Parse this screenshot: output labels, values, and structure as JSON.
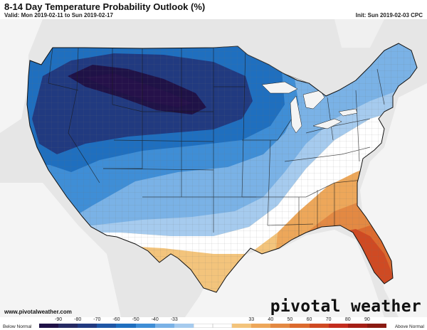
{
  "header": {
    "title": "8-14 Day Temperature Probability Outlook (%)",
    "valid": "Valid: Mon 2019-02-11 to Sun 2019-02-17",
    "init": "Init: Sun 2019-02-03 CPC"
  },
  "footer": {
    "website": "www.pivotalweather.com",
    "brand": "pivotal weather"
  },
  "legend": {
    "below_label": "Below Normal",
    "above_label": "Above Normal",
    "ticks": [
      "-90",
      "-80",
      "-70",
      "-60",
      "-50",
      "-40",
      "-33",
      "33",
      "40",
      "50",
      "60",
      "70",
      "80",
      "90"
    ],
    "colors": [
      "#1f1247",
      "#252a63",
      "#213a80",
      "#1f57a6",
      "#1f6fbf",
      "#3f8ed6",
      "#7ab2e6",
      "#a6cbee",
      "#ffffff",
      "#ffffff",
      "#f3c47c",
      "#eda75a",
      "#e38943",
      "#dc6b2f",
      "#cf4a23",
      "#c32d1f",
      "#a51f17",
      "#8a1b12"
    ]
  },
  "map": {
    "region": "CONUS",
    "probability_areas": [
      {
        "category": "below",
        "level": "-90"
      },
      {
        "category": "below",
        "level": "-80"
      },
      {
        "category": "below",
        "level": "-70"
      },
      {
        "category": "below",
        "level": "-60"
      },
      {
        "category": "below",
        "level": "-50"
      },
      {
        "category": "below",
        "level": "-40"
      },
      {
        "category": "below",
        "level": "-33"
      },
      {
        "category": "near normal",
        "level": "33"
      },
      {
        "category": "above",
        "level": "40"
      },
      {
        "category": "above",
        "level": "50"
      },
      {
        "category": "above",
        "level": "60"
      },
      {
        "category": "above",
        "level": "70"
      }
    ]
  }
}
